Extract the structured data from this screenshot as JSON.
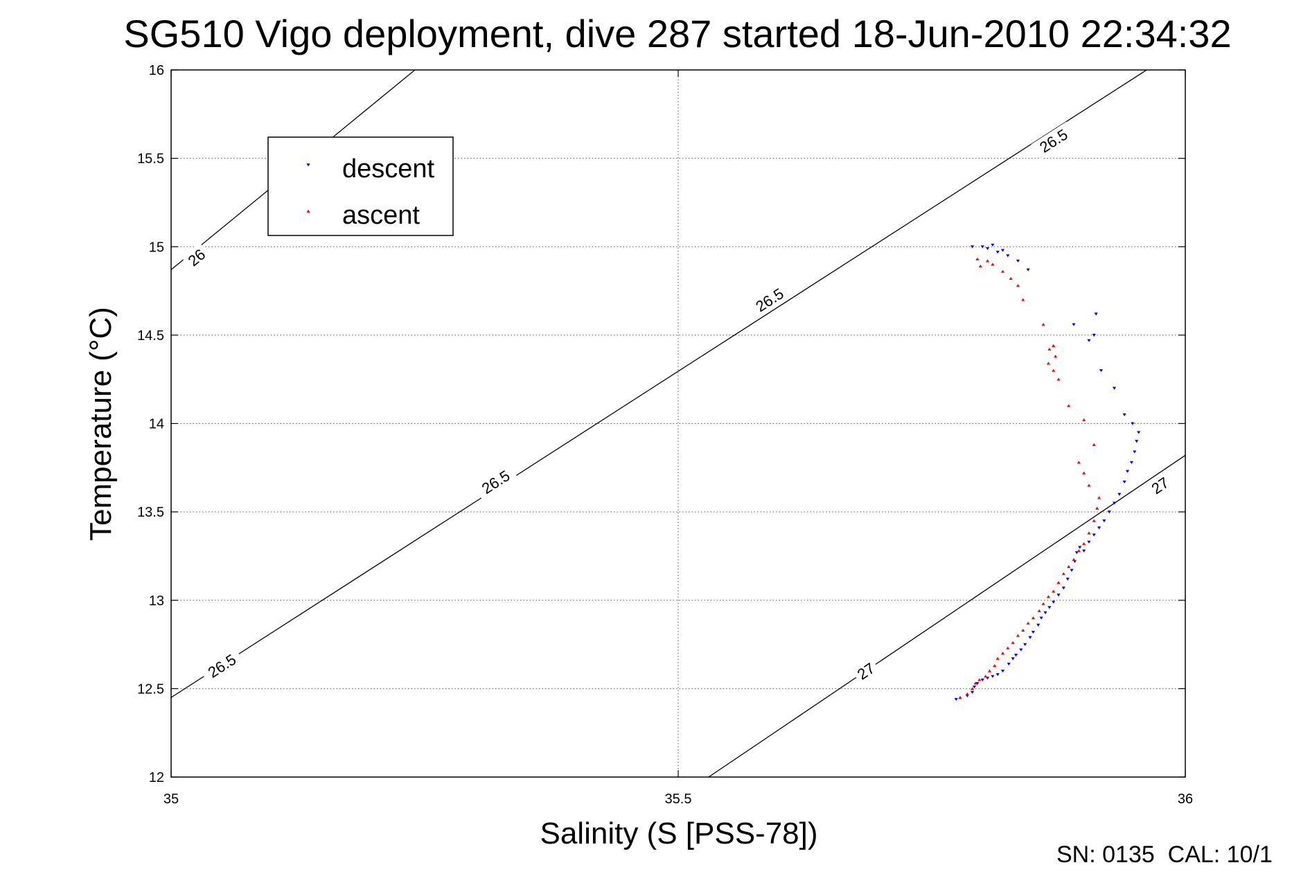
{
  "chart_data": {
    "type": "scatter",
    "title": "SG510 Vigo deployment, dive 287 started 18-Jun-2010 22:34:32",
    "xlabel": "Salinity (S [PSS-78])",
    "ylabel": "Temperature (°C)",
    "xlim": [
      35,
      36
    ],
    "ylim": [
      12,
      16
    ],
    "xticks": [
      35,
      35.5,
      36
    ],
    "xtick_labels": [
      "35",
      "35.5",
      "36"
    ],
    "yticks": [
      12,
      12.5,
      13,
      13.5,
      14,
      14.5,
      15,
      15.5,
      16
    ],
    "ytick_labels": [
      "12",
      "12.5",
      "13",
      "13.5",
      "14",
      "14.5",
      "15",
      "15.5",
      "16"
    ],
    "grid": true,
    "legend_position": "top-left",
    "footer_text": "SN: 0135  CAL: 10/1",
    "contours": [
      {
        "level": "26",
        "points": [
          [
            35.0,
            14.87
          ],
          [
            35.97,
            19.43
          ]
        ],
        "label_points": [
          [
            35.24,
            15.44
          ],
          [
            35.025,
            14.94
          ]
        ]
      },
      {
        "level": "26.5",
        "points": [
          [
            35.0,
            12.45
          ],
          [
            35.97,
            16.03
          ]
        ],
        "label_points": [
          [
            35.05,
            12.63
          ],
          [
            35.32,
            13.67
          ],
          [
            35.59,
            14.7
          ],
          [
            35.87,
            15.6
          ]
        ]
      },
      {
        "level": "27",
        "points": [
          [
            35.53,
            12.0
          ],
          [
            36.0,
            13.82
          ]
        ],
        "label_points": [
          [
            35.685,
            12.6
          ],
          [
            35.975,
            13.65
          ]
        ]
      }
    ],
    "series": [
      {
        "name": "descent",
        "color": "#0000ff",
        "marker": "triangle-down",
        "points": [
          [
            35.774,
            12.44
          ],
          [
            35.785,
            12.46
          ],
          [
            35.79,
            12.48
          ],
          [
            35.792,
            12.51
          ],
          [
            35.795,
            12.53
          ],
          [
            35.8,
            12.55
          ],
          [
            35.805,
            12.56
          ],
          [
            35.81,
            12.57
          ],
          [
            35.815,
            12.58
          ],
          [
            35.82,
            12.6
          ],
          [
            35.826,
            12.64
          ],
          [
            35.83,
            12.67
          ],
          [
            35.833,
            12.69
          ],
          [
            35.838,
            12.72
          ],
          [
            35.842,
            12.75
          ],
          [
            35.847,
            12.79
          ],
          [
            35.85,
            12.82
          ],
          [
            35.855,
            12.86
          ],
          [
            35.858,
            12.9
          ],
          [
            35.862,
            12.93
          ],
          [
            35.866,
            12.96
          ],
          [
            35.87,
            12.99
          ],
          [
            35.875,
            13.03
          ],
          [
            35.88,
            13.07
          ],
          [
            35.884,
            13.12
          ],
          [
            35.888,
            13.17
          ],
          [
            35.891,
            13.22
          ],
          [
            35.893,
            13.27
          ],
          [
            35.896,
            13.3
          ],
          [
            35.9,
            13.28
          ],
          [
            35.905,
            13.33
          ],
          [
            35.91,
            13.37
          ],
          [
            35.915,
            13.41
          ],
          [
            35.92,
            13.45
          ],
          [
            35.925,
            13.5
          ],
          [
            35.93,
            13.55
          ],
          [
            35.935,
            13.6
          ],
          [
            35.94,
            13.67
          ],
          [
            35.943,
            13.73
          ],
          [
            35.947,
            13.78
          ],
          [
            35.95,
            13.84
          ],
          [
            35.952,
            13.9
          ],
          [
            35.954,
            13.95
          ],
          [
            35.948,
            14.0
          ],
          [
            35.94,
            14.05
          ],
          [
            35.93,
            14.2
          ],
          [
            35.917,
            14.3
          ],
          [
            35.905,
            14.47
          ],
          [
            35.91,
            14.5
          ],
          [
            35.912,
            14.62
          ],
          [
            35.89,
            14.56
          ],
          [
            35.845,
            14.87
          ],
          [
            35.835,
            14.92
          ],
          [
            35.825,
            14.95
          ],
          [
            35.815,
            14.97
          ],
          [
            35.805,
            14.99
          ],
          [
            35.8,
            15.0
          ],
          [
            35.79,
            15.0
          ],
          [
            35.81,
            15.01
          ],
          [
            35.82,
            14.98
          ]
        ]
      },
      {
        "name": "ascent",
        "color": "#ff0000",
        "marker": "triangle-up",
        "points": [
          [
            35.778,
            12.45
          ],
          [
            35.785,
            12.47
          ],
          [
            35.79,
            12.5
          ],
          [
            35.793,
            12.53
          ],
          [
            35.797,
            12.55
          ],
          [
            35.803,
            12.57
          ],
          [
            35.807,
            12.6
          ],
          [
            35.812,
            12.63
          ],
          [
            35.815,
            12.67
          ],
          [
            35.82,
            12.7
          ],
          [
            35.825,
            12.73
          ],
          [
            35.83,
            12.76
          ],
          [
            35.835,
            12.8
          ],
          [
            35.84,
            12.83
          ],
          [
            35.845,
            12.87
          ],
          [
            35.85,
            12.9
          ],
          [
            35.856,
            12.94
          ],
          [
            35.86,
            12.98
          ],
          [
            35.865,
            13.02
          ],
          [
            35.87,
            13.05
          ],
          [
            35.875,
            13.1
          ],
          [
            35.88,
            13.15
          ],
          [
            35.885,
            13.19
          ],
          [
            35.89,
            13.23
          ],
          [
            35.895,
            13.28
          ],
          [
            35.9,
            13.32
          ],
          [
            35.905,
            13.38
          ],
          [
            35.91,
            13.45
          ],
          [
            35.913,
            13.52
          ],
          [
            35.915,
            13.58
          ],
          [
            35.905,
            13.65
          ],
          [
            35.9,
            13.72
          ],
          [
            35.895,
            13.78
          ],
          [
            35.91,
            13.88
          ],
          [
            35.9,
            14.02
          ],
          [
            35.885,
            14.1
          ],
          [
            35.875,
            14.25
          ],
          [
            35.87,
            14.3
          ],
          [
            35.865,
            14.34
          ],
          [
            35.872,
            14.38
          ],
          [
            35.866,
            14.42
          ],
          [
            35.87,
            14.44
          ],
          [
            35.86,
            14.56
          ],
          [
            35.84,
            14.7
          ],
          [
            35.835,
            14.78
          ],
          [
            35.828,
            14.82
          ],
          [
            35.82,
            14.86
          ],
          [
            35.81,
            14.9
          ],
          [
            35.805,
            14.92
          ],
          [
            35.795,
            14.93
          ],
          [
            35.798,
            14.89
          ]
        ]
      }
    ]
  }
}
